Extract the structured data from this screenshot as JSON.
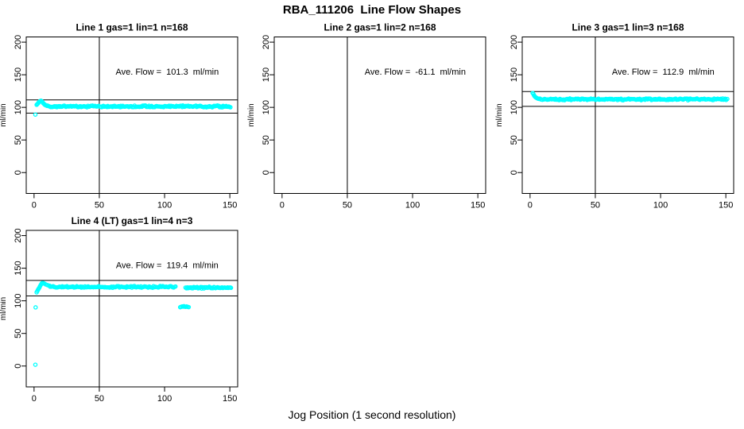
{
  "page": {
    "title": "RBA_111206  Line Flow Shapes",
    "xlabel": "Jog Position (1 second resolution)",
    "background_color": "#FFFFFF",
    "point_color": "#00FFFF",
    "line_color": "#000000"
  },
  "chart_data": [
    {
      "type": "scatter",
      "title": "Line 1 gas=1 lin=1 n=168",
      "annotation": "Ave. Flow =  101.3  ml/min",
      "annotation_pos": [
        102,
        150
      ],
      "ave_flow": 101.3,
      "ylabel": "ml/min",
      "xlim": [
        -6,
        156
      ],
      "ylim": [
        -32,
        208
      ],
      "xticks": [
        0,
        50,
        100,
        150
      ],
      "yticks": [
        0,
        50,
        100,
        150,
        200
      ],
      "vlines": [
        50
      ],
      "hlines": [
        91.2,
        111.4
      ],
      "grid": false,
      "outliers": [
        [
          1,
          89
        ]
      ],
      "ramp": [
        [
          2,
          104
        ],
        [
          2.5,
          105
        ],
        [
          3,
          106
        ],
        [
          3.5,
          107.5
        ],
        [
          4,
          108.5
        ],
        [
          4.5,
          109.5
        ],
        [
          5,
          110
        ],
        [
          5.5,
          110
        ],
        [
          6,
          109
        ],
        [
          6.5,
          108
        ],
        [
          7,
          106.5
        ],
        [
          7.5,
          105.5
        ],
        [
          8,
          104.5
        ],
        [
          8.5,
          103.8
        ],
        [
          9,
          103.2
        ],
        [
          9.5,
          102.8
        ],
        [
          10,
          102.3
        ]
      ],
      "band_segments": [
        {
          "x_from": 10.5,
          "x_to": 151,
          "y": 101.5,
          "spread": 1.0
        }
      ]
    },
    {
      "type": "scatter",
      "title": "Line 2 gas=1 lin=2 n=168",
      "annotation": "Ave. Flow =  -61.1  ml/min",
      "annotation_pos": [
        102,
        150
      ],
      "ave_flow": -61.1,
      "ylabel": "ml/min",
      "xlim": [
        -6,
        156
      ],
      "ylim": [
        -32,
        208
      ],
      "xticks": [
        0,
        50,
        100,
        150
      ],
      "yticks": [
        0,
        50,
        100,
        150,
        200
      ],
      "vlines": [
        50
      ],
      "hlines": [],
      "grid": false,
      "outliers": [],
      "ramp": [],
      "band_segments": []
    },
    {
      "type": "scatter",
      "title": "Line 3 gas=1 lin=3 n=168",
      "annotation": "Ave. Flow =  112.9  ml/min",
      "annotation_pos": [
        102,
        150
      ],
      "ave_flow": 112.9,
      "ylabel": "ml/min",
      "xlim": [
        -6,
        156
      ],
      "ylim": [
        -32,
        208
      ],
      "xticks": [
        0,
        50,
        100,
        150
      ],
      "yticks": [
        0,
        50,
        100,
        150,
        200
      ],
      "vlines": [
        50
      ],
      "hlines": [
        101.6,
        124.2
      ],
      "grid": false,
      "outliers": [],
      "ramp": [
        [
          2,
          122
        ],
        [
          2.5,
          120.5
        ],
        [
          3,
          118.5
        ],
        [
          3.5,
          117
        ],
        [
          4,
          116
        ],
        [
          4.5,
          115.2
        ],
        [
          5,
          114.5
        ],
        [
          5.5,
          114
        ],
        [
          6,
          113.5
        ],
        [
          6.5,
          113.2
        ],
        [
          7,
          113
        ]
      ],
      "band_segments": [
        {
          "x_from": 7.5,
          "x_to": 151,
          "y": 112.3,
          "spread": 1.0
        }
      ]
    },
    {
      "type": "scatter",
      "title": "Line 4 (LT) gas=1 lin=4 n=3",
      "annotation": "Ave. Flow =  119.4  ml/min",
      "annotation_pos": [
        102,
        150
      ],
      "ave_flow": 119.4,
      "ylabel": "ml/min",
      "xlim": [
        -6,
        156
      ],
      "ylim": [
        -32,
        208
      ],
      "xticks": [
        0,
        50,
        100,
        150
      ],
      "yticks": [
        0,
        50,
        100,
        150,
        200
      ],
      "vlines": [
        50
      ],
      "hlines": [
        107.5,
        131.3
      ],
      "grid": false,
      "outliers": [
        [
          1,
          2
        ],
        [
          1.2,
          90
        ]
      ],
      "ramp": [
        [
          2,
          113
        ],
        [
          2.5,
          115
        ],
        [
          3,
          117
        ],
        [
          3.5,
          118.5
        ],
        [
          4,
          120
        ],
        [
          4.5,
          122
        ],
        [
          5,
          124
        ],
        [
          5.5,
          125.5
        ],
        [
          6,
          127
        ],
        [
          6.5,
          127.5
        ],
        [
          7,
          127.3
        ],
        [
          7.5,
          126.8
        ],
        [
          8,
          126.2
        ],
        [
          9,
          125.2
        ],
        [
          10,
          124.3
        ],
        [
          11,
          123.6
        ],
        [
          12,
          123
        ]
      ],
      "band_segments": [
        {
          "x_from": 12.5,
          "x_to": 109,
          "y": 121.3,
          "spread": 1.0
        },
        {
          "x_from": 112,
          "x_to": 119,
          "y": 91,
          "spread": 0.8
        },
        {
          "x_from": 116,
          "x_to": 151,
          "y": 120.3,
          "spread": 1.0
        }
      ]
    }
  ]
}
